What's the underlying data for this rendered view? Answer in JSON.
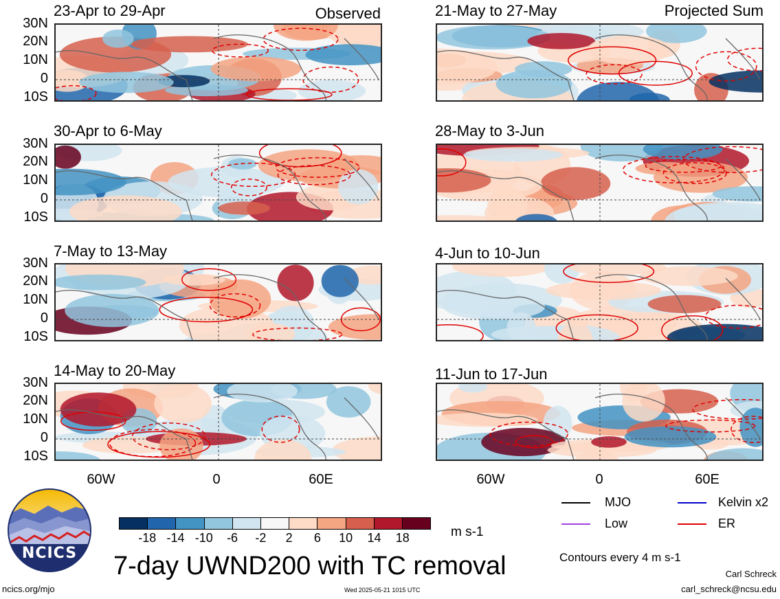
{
  "panels_left": [
    {
      "title": "23-Apr to 29-Apr",
      "note": "Observed"
    },
    {
      "title": "30-Apr to 6-May",
      "note": ""
    },
    {
      "title": "7-May to 13-May",
      "note": ""
    },
    {
      "title": "14-May to 20-May",
      "note": ""
    }
  ],
  "panels_right": [
    {
      "title": "21-May to 27-May",
      "note": "Projected Sum"
    },
    {
      "title": "28-May to 3-Jun",
      "note": ""
    },
    {
      "title": "4-Jun to 10-Jun",
      "note": ""
    },
    {
      "title": "11-Jun to 17-Jun",
      "note": ""
    }
  ],
  "lat_labels": [
    "30N",
    "20N",
    "10N",
    "0",
    "10S"
  ],
  "lon_labels": [
    "60W",
    "0",
    "60E"
  ],
  "colorbar": {
    "labels": [
      "-18",
      "-14",
      "-10",
      "-6",
      "-2",
      "2",
      "6",
      "10",
      "14",
      "18"
    ],
    "colors": [
      "#053061",
      "#2166ac",
      "#4393c3",
      "#92c5de",
      "#d1e5f0",
      "#f7f7f7",
      "#fddbc7",
      "#f4a582",
      "#d6604d",
      "#b2182b",
      "#67001f"
    ],
    "units": "m s-1"
  },
  "legend": [
    {
      "label": "MJO",
      "color": "#000000"
    },
    {
      "label": "Kelvin x2",
      "color": "#0000cc"
    },
    {
      "label": "Low",
      "color": "#a040e0"
    },
    {
      "label": "ER",
      "color": "#e00000"
    }
  ],
  "contours_note": "Contours every 4 m s-1",
  "main_title": "7-day UWND200 with TC removal",
  "logo_text": "NCICS",
  "footer": {
    "url": "ncics.org/mjo",
    "timestamp": "Wed 2025-05-21 1015 UTC",
    "author": "Carl Schreck",
    "email": "carl_schreck@ncsu.edu"
  }
}
